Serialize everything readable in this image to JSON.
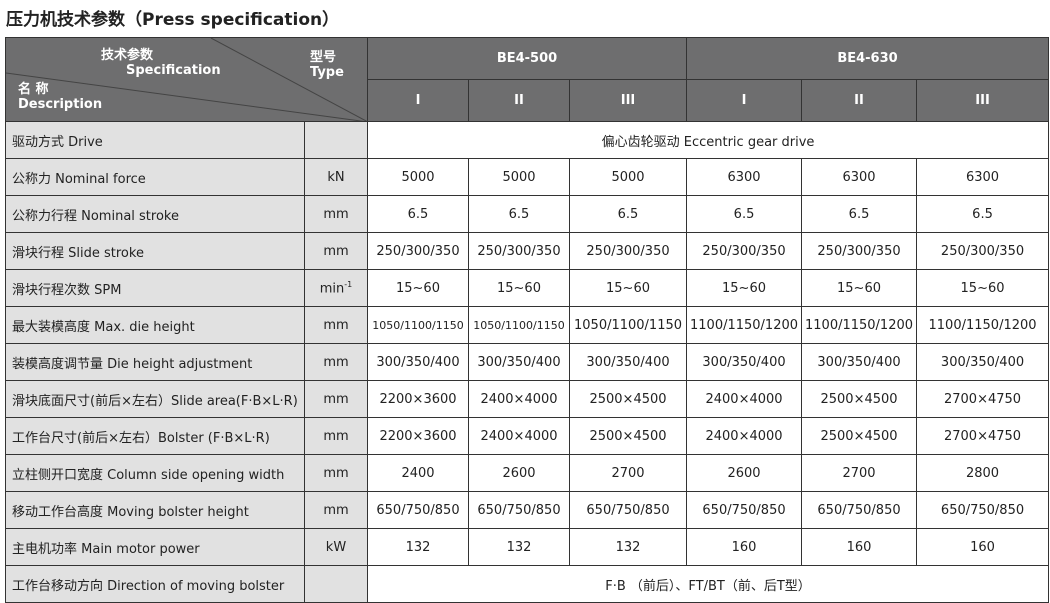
{
  "title": "压力机技术参数（Press specification）",
  "header": {
    "spec_cn": "技术参数",
    "spec_en": "Specification",
    "type_cn": "型号",
    "type_en": "Type",
    "name_cn": "名 称",
    "name_en": "Description",
    "models": [
      "BE4-500",
      "BE4-630"
    ],
    "subtypes": [
      "I",
      "II",
      "III",
      "I",
      "II",
      "III"
    ]
  },
  "rows": [
    {
      "label": "驱动方式 Drive",
      "unit": "",
      "span": "偏心齿轮驱动 Eccentric gear drive"
    },
    {
      "label": "公称力 Nominal force",
      "unit": "kN",
      "values": [
        "5000",
        "5000",
        "5000",
        "6300",
        "6300",
        "6300"
      ]
    },
    {
      "label": "公称力行程  Nominal stroke",
      "unit": "mm",
      "values": [
        "6.5",
        "6.5",
        "6.5",
        "6.5",
        "6.5",
        "6.5"
      ]
    },
    {
      "label": "滑块行程  Slide stroke",
      "unit": "mm",
      "values": [
        "250/300/350",
        "250/300/350",
        "250/300/350",
        "250/300/350",
        "250/300/350",
        "250/300/350"
      ]
    },
    {
      "label": "滑块行程次数  SPM",
      "unit": "min",
      "unit_sup": "-1",
      "values": [
        "15~60",
        "15~60",
        "15~60",
        "15~60",
        "15~60",
        "15~60"
      ]
    },
    {
      "label": "最大装模高度  Max. die height",
      "unit": "mm",
      "values": [
        "1050/1100/1150",
        "1050/1100/1150",
        "1050/1100/1150",
        "1100/1150/1200",
        "1100/1150/1200",
        "1100/1150/1200"
      ]
    },
    {
      "label": "装模高度调节量  Die height adjustment",
      "unit": "mm",
      "values": [
        "300/350/400",
        "300/350/400",
        "300/350/400",
        "300/350/400",
        "300/350/400",
        "300/350/400"
      ]
    },
    {
      "label": "滑块底面尺寸(前后×左右）Slide area(F·B×L·R)",
      "unit": "mm",
      "values": [
        "2200×3600",
        "2400×4000",
        "2500×4500",
        "2400×4000",
        "2500×4500",
        "2700×4750"
      ]
    },
    {
      "label": "工作台尺寸(前后×左右）Bolster (F·B×L·R)",
      "unit": "mm",
      "values": [
        "2200×3600",
        "2400×4000",
        "2500×4500",
        "2400×4000",
        "2500×4500",
        "2700×4750"
      ]
    },
    {
      "label": "立柱侧开口宽度  Column side opening width",
      "unit": "mm",
      "values": [
        "2400",
        "2600",
        "2700",
        "2600",
        "2700",
        "2800"
      ]
    },
    {
      "label": "移动工作台高度  Moving bolster height",
      "unit": "mm",
      "values": [
        "650/750/850",
        "650/750/850",
        "650/750/850",
        "650/750/850",
        "650/750/850",
        "650/750/850"
      ]
    },
    {
      "label": "主电机功率  Main motor power",
      "unit": "kW",
      "values": [
        "132",
        "132",
        "132",
        "160",
        "160",
        "160"
      ]
    },
    {
      "label": "工作台移动方向  Direction of moving bolster",
      "unit": "",
      "span": "F·B （前后）、FT/BT（前、后T型）"
    }
  ]
}
